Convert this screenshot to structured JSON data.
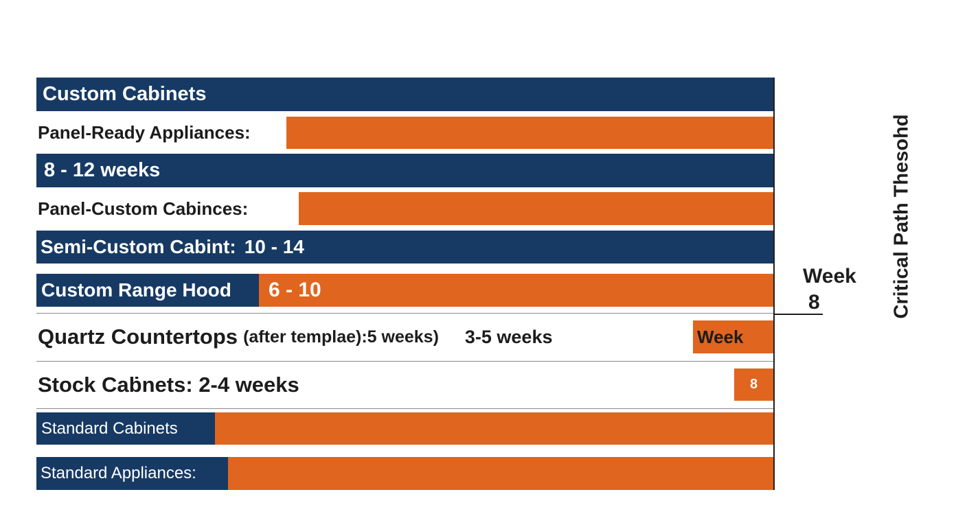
{
  "colors": {
    "navy": "#173a64",
    "orange": "#e0651f",
    "text_dark": "#1c1c1c"
  },
  "chart_data": {
    "type": "bar",
    "orientation": "horizontal",
    "title": "",
    "rows": [
      {
        "label": "Custom Cabinets",
        "value": "",
        "color": "navy"
      },
      {
        "label": "Panel-Ready Appliances:",
        "value": "",
        "color": "orange"
      },
      {
        "label": "8 - 12 weeks",
        "value": "",
        "color": "navy"
      },
      {
        "label": "Panel-Custom Cabinces:",
        "value": "",
        "color": "orange"
      },
      {
        "label": "Semi-Custom Cabint:",
        "value": "10 - 14",
        "color": "navy"
      },
      {
        "label": "Custom Range Hood",
        "value": "6 - 10",
        "color": "mixed"
      },
      {
        "label": "Quartz Countertops",
        "label_extra": "(after templae):5 weeks)",
        "value": "3-5 weeks",
        "marker": "Week",
        "color": "orange"
      },
      {
        "label": "Stock Caḃnets: 2-4 weeks",
        "value": "",
        "marker": "8",
        "color": "orange"
      },
      {
        "label": "Standard Cabinets",
        "value": "",
        "color": "mixed"
      },
      {
        "label": "Standard Appliances:",
        "value": "",
        "color": "mixed"
      }
    ],
    "threshold": {
      "label_line1": "Week",
      "label_line2": "8",
      "side_title": "Critical Path Thesohd"
    },
    "grid": false,
    "legend": "none"
  }
}
